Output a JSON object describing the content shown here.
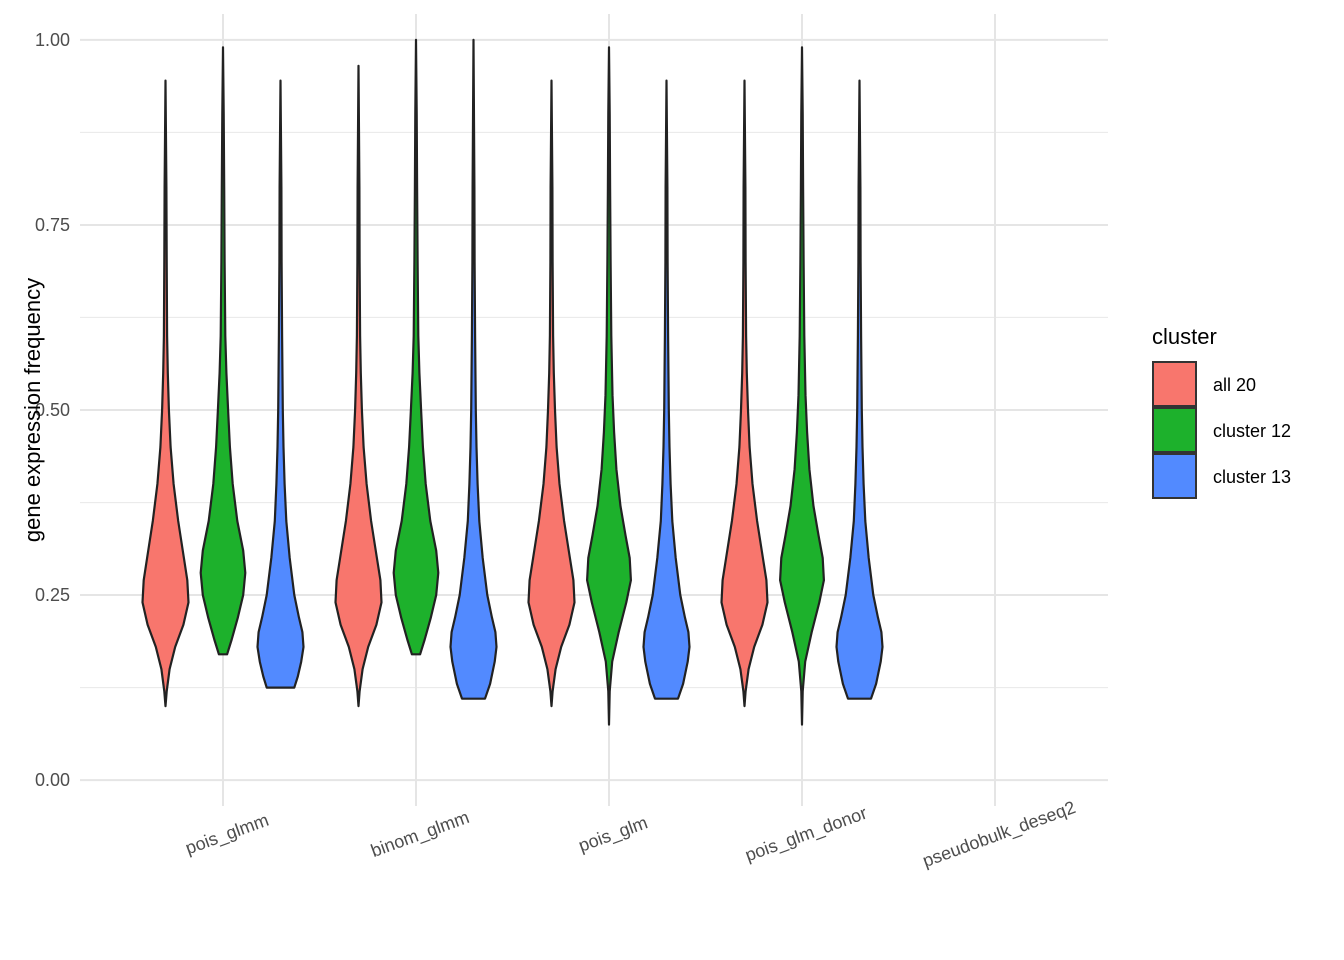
{
  "chart_data": {
    "type": "violin",
    "xlabel": "",
    "ylabel": "gene expression frequency",
    "ylim": [
      -0.035,
      1.035
    ],
    "yticks": [
      "0.00",
      "0.25",
      "0.50",
      "0.75",
      "1.00"
    ],
    "categories": [
      "pois_glmm",
      "binom_glmm",
      "pois_glm",
      "pois_glm_donor",
      "pseudobulk_deseq2"
    ],
    "grid": true,
    "legend": {
      "title": "cluster",
      "position": "right"
    },
    "series": [
      {
        "name": "all 20",
        "color": "#F8766D",
        "violins": [
          {
            "category": "pois_glmm",
            "min": 0.1,
            "max": 0.945,
            "profile": [
              [
                0.1,
                0.0
              ],
              [
                0.12,
                0.05
              ],
              [
                0.15,
                0.18
              ],
              [
                0.18,
                0.42
              ],
              [
                0.21,
                0.78
              ],
              [
                0.24,
                1.0
              ],
              [
                0.27,
                0.95
              ],
              [
                0.3,
                0.8
              ],
              [
                0.35,
                0.55
              ],
              [
                0.4,
                0.35
              ],
              [
                0.45,
                0.22
              ],
              [
                0.5,
                0.15
              ],
              [
                0.55,
                0.1
              ],
              [
                0.6,
                0.07
              ],
              [
                0.7,
                0.05
              ],
              [
                0.8,
                0.04
              ],
              [
                0.945,
                0.0
              ]
            ]
          },
          {
            "category": "binom_glmm",
            "min": 0.1,
            "max": 0.965,
            "profile": [
              [
                0.1,
                0.0
              ],
              [
                0.12,
                0.05
              ],
              [
                0.15,
                0.18
              ],
              [
                0.18,
                0.42
              ],
              [
                0.21,
                0.78
              ],
              [
                0.24,
                1.0
              ],
              [
                0.27,
                0.95
              ],
              [
                0.3,
                0.8
              ],
              [
                0.35,
                0.55
              ],
              [
                0.4,
                0.35
              ],
              [
                0.45,
                0.22
              ],
              [
                0.5,
                0.15
              ],
              [
                0.55,
                0.1
              ],
              [
                0.6,
                0.07
              ],
              [
                0.7,
                0.05
              ],
              [
                0.8,
                0.04
              ],
              [
                0.965,
                0.0
              ]
            ]
          },
          {
            "category": "pois_glm",
            "min": 0.1,
            "max": 0.945,
            "profile": [
              [
                0.1,
                0.0
              ],
              [
                0.12,
                0.05
              ],
              [
                0.15,
                0.18
              ],
              [
                0.18,
                0.42
              ],
              [
                0.21,
                0.78
              ],
              [
                0.24,
                1.0
              ],
              [
                0.27,
                0.95
              ],
              [
                0.3,
                0.8
              ],
              [
                0.35,
                0.55
              ],
              [
                0.4,
                0.35
              ],
              [
                0.45,
                0.22
              ],
              [
                0.5,
                0.15
              ],
              [
                0.55,
                0.1
              ],
              [
                0.6,
                0.07
              ],
              [
                0.7,
                0.05
              ],
              [
                0.8,
                0.04
              ],
              [
                0.945,
                0.0
              ]
            ]
          },
          {
            "category": "pois_glm_donor",
            "min": 0.1,
            "max": 0.945,
            "profile": [
              [
                0.1,
                0.0
              ],
              [
                0.12,
                0.05
              ],
              [
                0.15,
                0.18
              ],
              [
                0.18,
                0.42
              ],
              [
                0.21,
                0.78
              ],
              [
                0.24,
                1.0
              ],
              [
                0.27,
                0.95
              ],
              [
                0.3,
                0.8
              ],
              [
                0.35,
                0.55
              ],
              [
                0.4,
                0.35
              ],
              [
                0.45,
                0.22
              ],
              [
                0.5,
                0.15
              ],
              [
                0.55,
                0.1
              ],
              [
                0.6,
                0.07
              ],
              [
                0.7,
                0.05
              ],
              [
                0.8,
                0.04
              ],
              [
                0.945,
                0.0
              ]
            ]
          }
        ]
      },
      {
        "name": "cluster 12",
        "color": "#1DB12C",
        "violins": [
          {
            "category": "pois_glmm",
            "min": 0.17,
            "max": 0.99,
            "profile": [
              [
                0.17,
                0.18
              ],
              [
                0.19,
                0.38
              ],
              [
                0.22,
                0.65
              ],
              [
                0.25,
                0.88
              ],
              [
                0.28,
                0.97
              ],
              [
                0.31,
                0.88
              ],
              [
                0.35,
                0.62
              ],
              [
                0.4,
                0.42
              ],
              [
                0.45,
                0.3
              ],
              [
                0.5,
                0.22
              ],
              [
                0.55,
                0.15
              ],
              [
                0.6,
                0.1
              ],
              [
                0.7,
                0.07
              ],
              [
                0.8,
                0.05
              ],
              [
                0.9,
                0.03
              ],
              [
                0.99,
                0.0
              ]
            ]
          },
          {
            "category": "binom_glmm",
            "min": 0.17,
            "max": 1.0,
            "profile": [
              [
                0.17,
                0.18
              ],
              [
                0.19,
                0.38
              ],
              [
                0.22,
                0.65
              ],
              [
                0.25,
                0.88
              ],
              [
                0.28,
                0.97
              ],
              [
                0.31,
                0.88
              ],
              [
                0.35,
                0.62
              ],
              [
                0.4,
                0.42
              ],
              [
                0.45,
                0.3
              ],
              [
                0.5,
                0.22
              ],
              [
                0.55,
                0.15
              ],
              [
                0.6,
                0.1
              ],
              [
                0.7,
                0.07
              ],
              [
                0.8,
                0.05
              ],
              [
                0.9,
                0.03
              ],
              [
                1.0,
                0.0
              ]
            ]
          },
          {
            "category": "pois_glm",
            "min": 0.075,
            "max": 0.99,
            "profile": [
              [
                0.075,
                0.0
              ],
              [
                0.12,
                0.03
              ],
              [
                0.16,
                0.14
              ],
              [
                0.2,
                0.42
              ],
              [
                0.24,
                0.75
              ],
              [
                0.27,
                0.95
              ],
              [
                0.3,
                0.9
              ],
              [
                0.33,
                0.72
              ],
              [
                0.37,
                0.5
              ],
              [
                0.42,
                0.32
              ],
              [
                0.47,
                0.22
              ],
              [
                0.52,
                0.15
              ],
              [
                0.6,
                0.1
              ],
              [
                0.7,
                0.07
              ],
              [
                0.8,
                0.05
              ],
              [
                0.9,
                0.03
              ],
              [
                0.99,
                0.0
              ]
            ]
          },
          {
            "category": "pois_glm_donor",
            "min": 0.075,
            "max": 0.99,
            "profile": [
              [
                0.075,
                0.0
              ],
              [
                0.12,
                0.03
              ],
              [
                0.16,
                0.14
              ],
              [
                0.2,
                0.42
              ],
              [
                0.24,
                0.75
              ],
              [
                0.27,
                0.95
              ],
              [
                0.3,
                0.9
              ],
              [
                0.33,
                0.72
              ],
              [
                0.37,
                0.5
              ],
              [
                0.42,
                0.32
              ],
              [
                0.47,
                0.22
              ],
              [
                0.52,
                0.15
              ],
              [
                0.6,
                0.1
              ],
              [
                0.7,
                0.07
              ],
              [
                0.8,
                0.05
              ],
              [
                0.9,
                0.03
              ],
              [
                0.99,
                0.0
              ]
            ]
          }
        ]
      },
      {
        "name": "cluster 13",
        "color": "#528AFF",
        "violins": [
          {
            "category": "pois_glmm",
            "min": 0.125,
            "max": 0.945,
            "profile": [
              [
                0.125,
                0.6
              ],
              [
                0.14,
                0.75
              ],
              [
                0.16,
                0.9
              ],
              [
                0.18,
                1.0
              ],
              [
                0.2,
                0.95
              ],
              [
                0.22,
                0.8
              ],
              [
                0.25,
                0.6
              ],
              [
                0.3,
                0.4
              ],
              [
                0.35,
                0.25
              ],
              [
                0.4,
                0.18
              ],
              [
                0.45,
                0.13
              ],
              [
                0.5,
                0.1
              ],
              [
                0.6,
                0.07
              ],
              [
                0.7,
                0.05
              ],
              [
                0.8,
                0.04
              ],
              [
                0.945,
                0.0
              ]
            ]
          },
          {
            "category": "binom_glmm",
            "min": 0.11,
            "max": 1.0,
            "profile": [
              [
                0.11,
                0.5
              ],
              [
                0.13,
                0.72
              ],
              [
                0.16,
                0.92
              ],
              [
                0.18,
                1.0
              ],
              [
                0.2,
                0.95
              ],
              [
                0.22,
                0.8
              ],
              [
                0.25,
                0.6
              ],
              [
                0.3,
                0.4
              ],
              [
                0.35,
                0.25
              ],
              [
                0.4,
                0.18
              ],
              [
                0.45,
                0.13
              ],
              [
                0.5,
                0.1
              ],
              [
                0.6,
                0.07
              ],
              [
                0.7,
                0.05
              ],
              [
                0.8,
                0.04
              ],
              [
                1.0,
                0.0
              ]
            ]
          },
          {
            "category": "pois_glm",
            "min": 0.11,
            "max": 0.945,
            "profile": [
              [
                0.11,
                0.5
              ],
              [
                0.13,
                0.72
              ],
              [
                0.16,
                0.92
              ],
              [
                0.18,
                1.0
              ],
              [
                0.2,
                0.95
              ],
              [
                0.22,
                0.8
              ],
              [
                0.25,
                0.6
              ],
              [
                0.3,
                0.4
              ],
              [
                0.35,
                0.25
              ],
              [
                0.4,
                0.18
              ],
              [
                0.45,
                0.13
              ],
              [
                0.5,
                0.1
              ],
              [
                0.6,
                0.07
              ],
              [
                0.7,
                0.05
              ],
              [
                0.8,
                0.04
              ],
              [
                0.945,
                0.0
              ]
            ]
          },
          {
            "category": "pois_glm_donor",
            "min": 0.11,
            "max": 0.945,
            "profile": [
              [
                0.11,
                0.5
              ],
              [
                0.13,
                0.72
              ],
              [
                0.16,
                0.92
              ],
              [
                0.18,
                1.0
              ],
              [
                0.2,
                0.95
              ],
              [
                0.22,
                0.8
              ],
              [
                0.25,
                0.6
              ],
              [
                0.3,
                0.4
              ],
              [
                0.35,
                0.25
              ],
              [
                0.4,
                0.18
              ],
              [
                0.45,
                0.13
              ],
              [
                0.5,
                0.1
              ],
              [
                0.6,
                0.07
              ],
              [
                0.7,
                0.05
              ],
              [
                0.8,
                0.04
              ],
              [
                0.945,
                0.0
              ]
            ]
          }
        ]
      }
    ]
  }
}
